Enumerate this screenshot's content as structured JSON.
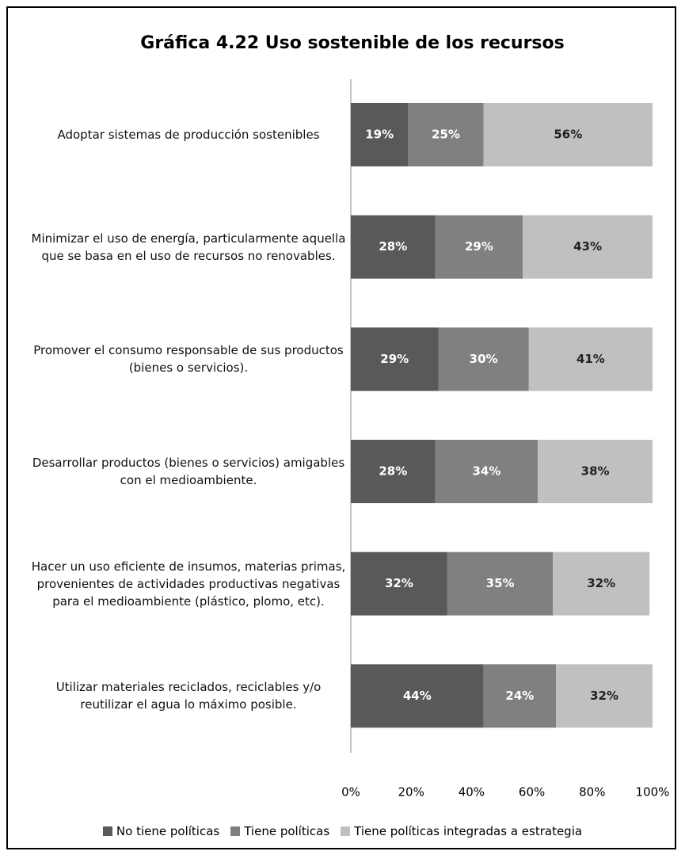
{
  "chart_data": {
    "type": "stacked_bar_horizontal",
    "title": "Gráfica 4.22  Uso sostenible de los recursos",
    "categories": [
      "Adoptar sistemas de producción sostenibles",
      "Minimizar el uso de energía, particularmente aquella que se basa en el uso de recursos no renovables.",
      "Promover el consumo responsable de sus productos (bienes o servicios).",
      "Desarrollar productos (bienes o servicios) amigables con el medioambiente.",
      "Hacer un uso eficiente de insumos, materias primas, provenientes de actividades productivas negativas para el medioambiente (plástico, plomo, etc).",
      "Utilizar materiales reciclados, reciclables y/o reutilizar el agua lo máximo posible."
    ],
    "series": [
      {
        "name": "No tiene políticas",
        "color": "#595959",
        "values": [
          19,
          28,
          29,
          28,
          32,
          44
        ],
        "value_labels": [
          "19%",
          "28%",
          "29%",
          "28%",
          "32%",
          "44%"
        ]
      },
      {
        "name": "Tiene políticas",
        "color": "#808080",
        "values": [
          25,
          29,
          30,
          34,
          35,
          24
        ],
        "value_labels": [
          "25%",
          "29%",
          "30%",
          "34%",
          "35%",
          "24%"
        ]
      },
      {
        "name": "Tiene políticas  integradas a estrategia",
        "color": "#c0c0c0",
        "values": [
          56,
          43,
          41,
          38,
          32,
          32
        ],
        "value_labels": [
          "56%",
          "43%",
          "41%",
          "38%",
          "32%",
          "32%"
        ]
      }
    ],
    "xlim": [
      0,
      100
    ],
    "xticks": [
      {
        "value": 0,
        "label": "0%"
      },
      {
        "value": 20,
        "label": "20%"
      },
      {
        "value": 40,
        "label": "40%"
      },
      {
        "value": 60,
        "label": "60%"
      },
      {
        "value": 80,
        "label": "80%"
      },
      {
        "value": 100,
        "label": "100%"
      }
    ],
    "legend": "bottom"
  }
}
